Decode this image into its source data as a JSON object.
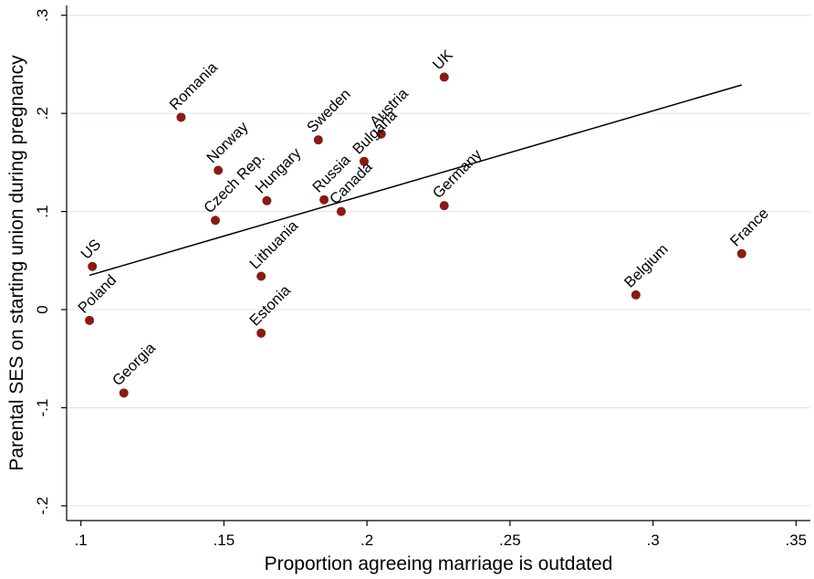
{
  "chart_data": {
    "type": "scatter",
    "title": "",
    "xlabel": "Proportion agreeing marriage is outdated",
    "ylabel": "Parental SES on starting union during pregnancy",
    "xlim": [
      0.095,
      0.355
    ],
    "ylim": [
      -0.215,
      0.31
    ],
    "xticks": [
      {
        "value": 0.1,
        "label": ".1"
      },
      {
        "value": 0.15,
        "label": ".15"
      },
      {
        "value": 0.2,
        "label": ".2"
      },
      {
        "value": 0.25,
        "label": ".25"
      },
      {
        "value": 0.3,
        "label": ".3"
      },
      {
        "value": 0.35,
        "label": ".35"
      }
    ],
    "yticks": [
      {
        "value": -0.2,
        "label": "-.2"
      },
      {
        "value": -0.1,
        "label": "-.1"
      },
      {
        "value": 0,
        "label": "0"
      },
      {
        "value": 0.1,
        "label": ".1"
      },
      {
        "value": 0.2,
        "label": ".2"
      },
      {
        "value": 0.3,
        "label": ".3"
      }
    ],
    "grid": true,
    "colors": {
      "point": "#8b1a12",
      "line": "#000000",
      "grid": "#e3e9ec",
      "axis": "#000000"
    },
    "points": [
      {
        "label": "UK",
        "x": 0.227,
        "y": 0.237
      },
      {
        "label": "Romania",
        "x": 0.135,
        "y": 0.196
      },
      {
        "label": "Austria",
        "x": 0.205,
        "y": 0.179
      },
      {
        "label": "Sweden",
        "x": 0.183,
        "y": 0.173
      },
      {
        "label": "Bulgaria",
        "x": 0.199,
        "y": 0.151
      },
      {
        "label": "Norway",
        "x": 0.148,
        "y": 0.142
      },
      {
        "label": "Hungary",
        "x": 0.165,
        "y": 0.111
      },
      {
        "label": "Russia",
        "x": 0.185,
        "y": 0.112
      },
      {
        "label": "Germany",
        "x": 0.227,
        "y": 0.106
      },
      {
        "label": "Canada",
        "x": 0.191,
        "y": 0.1
      },
      {
        "label": "Czech Rep.",
        "x": 0.147,
        "y": 0.091
      },
      {
        "label": "France",
        "x": 0.331,
        "y": 0.057
      },
      {
        "label": "US",
        "x": 0.104,
        "y": 0.044
      },
      {
        "label": "Lithuania",
        "x": 0.163,
        "y": 0.034
      },
      {
        "label": "Belgium",
        "x": 0.294,
        "y": 0.015
      },
      {
        "label": "Poland",
        "x": 0.103,
        "y": -0.011
      },
      {
        "label": "Estonia",
        "x": 0.163,
        "y": -0.024
      },
      {
        "label": "Georgia",
        "x": 0.115,
        "y": -0.085
      }
    ],
    "fit_line": {
      "x": [
        0.103,
        0.331
      ],
      "y": [
        0.035,
        0.229
      ]
    }
  }
}
